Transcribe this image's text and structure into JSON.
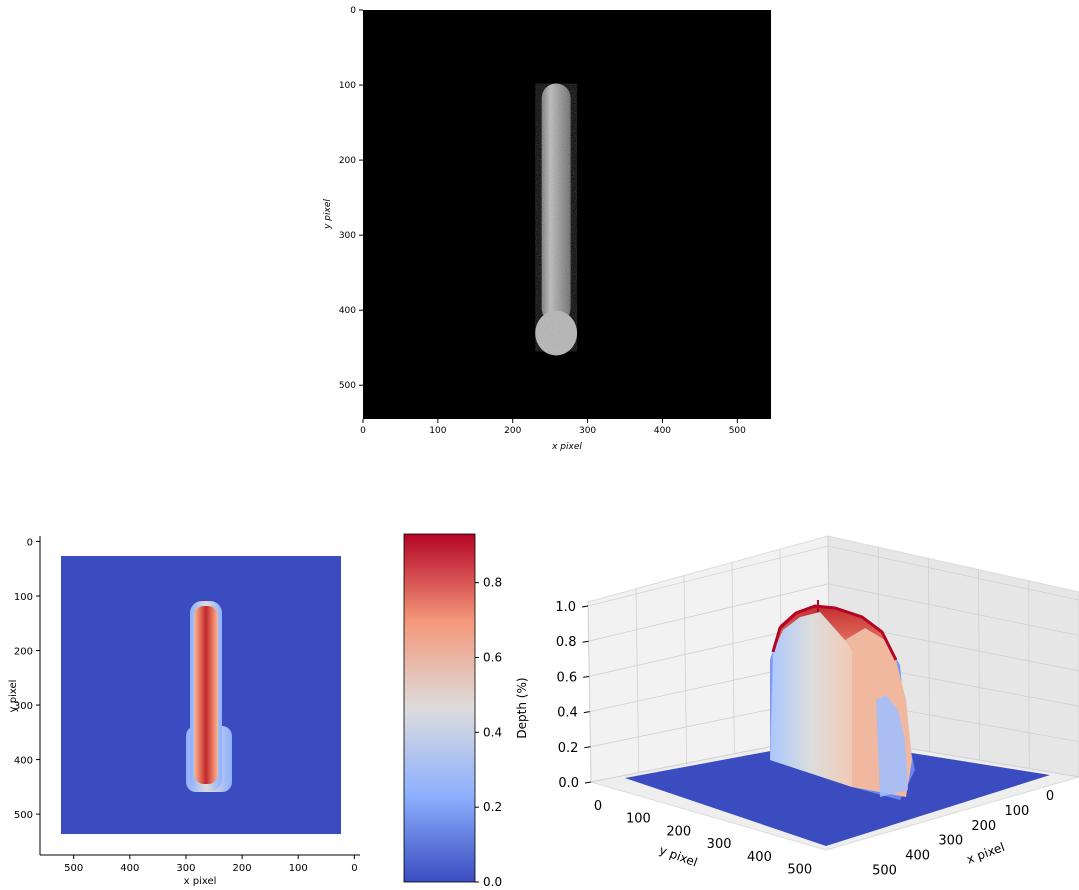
{
  "chart_data": [
    {
      "type": "image",
      "xlabel": "x pixel",
      "ylabel": "y pixel",
      "xlim": [
        0,
        545
      ],
      "ylim": [
        545,
        0
      ],
      "xticks": [
        "0",
        "100",
        "200",
        "300",
        "400",
        "500"
      ],
      "yticks": [
        "0",
        "100",
        "200",
        "300",
        "400",
        "500"
      ],
      "colormap": "gray",
      "background": "#000000",
      "object": {
        "x_center": 258,
        "top": 98,
        "bottom": 455,
        "stem_half_width": 22,
        "bulb_half_width": 28,
        "bulb_top": 390
      }
    },
    {
      "type": "heatmap",
      "xlabel": "x pixel",
      "ylabel": "y pixel",
      "xlim": [
        560,
        -10
      ],
      "ylim": [
        575,
        -10
      ],
      "xticks": [
        "500",
        "400",
        "300",
        "200",
        "100",
        "0"
      ],
      "yticks": [
        "0",
        "100",
        "200",
        "300",
        "400",
        "500"
      ],
      "colormap": "coolwarm",
      "background_color": "#3b4cc0",
      "peak_color": "#b40426",
      "colorbar": {
        "min": 0.0,
        "max": 0.93,
        "ticks": [
          "0.0",
          "0.2",
          "0.4",
          "0.6",
          "0.8"
        ],
        "label": "Depth (%)"
      }
    },
    {
      "type": "surface3d",
      "xlabel": "x pixel",
      "ylabel": "y pixel",
      "zlabel": "",
      "zlim": [
        0,
        1.0
      ],
      "zticks": [
        "0.0",
        "0.2",
        "0.4",
        "0.6",
        "0.8",
        "1.0"
      ],
      "xticks": [
        "0",
        "100",
        "200",
        "300",
        "400",
        "500"
      ],
      "yticks": [
        "0",
        "100",
        "200",
        "300",
        "400",
        "500"
      ],
      "colormap": "coolwarm"
    }
  ]
}
